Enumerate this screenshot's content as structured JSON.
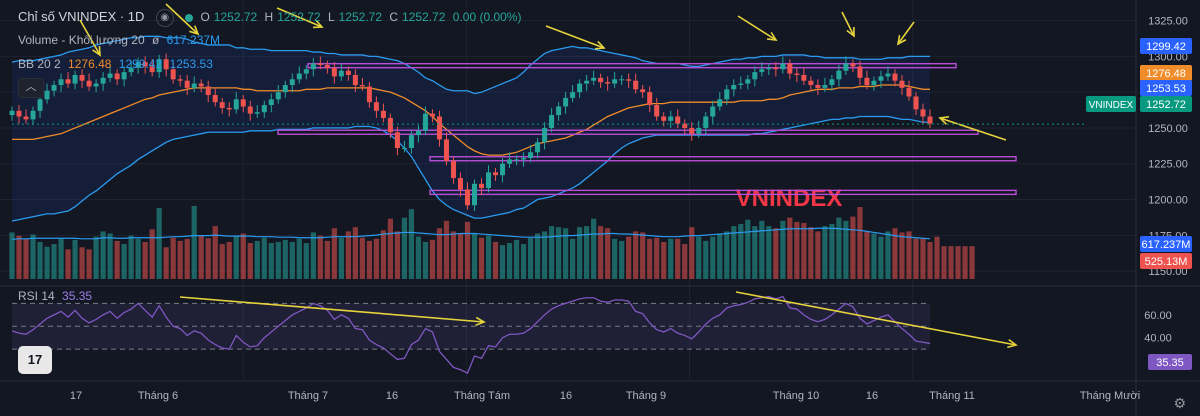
{
  "header": {
    "title": "Chỉ số VNINDEX · 1D",
    "ohlc": {
      "o_label": "O",
      "o": "1252.72",
      "h_label": "H",
      "h": "1252.72",
      "l_label": "L",
      "l": "1252.72",
      "c_label": "C",
      "c": "1252.72",
      "change": "0.00 (0.00%)"
    },
    "volume_label": "Volume - Khối lượng 20",
    "volume_value": "617.237M",
    "bb_label": "BB 20 2",
    "bb_values": [
      "1276.48",
      "1299.42",
      "1253.53"
    ],
    "rsi_label": "RSI 14",
    "rsi_value": "35.35"
  },
  "watermark": "VNINDEX",
  "logo_text": "17",
  "colors": {
    "up": "#26a69a",
    "down": "#ef5350",
    "bb_band": "#2a9bf0",
    "bb_basis": "#f08c2a",
    "rsi": "#7e57c2",
    "annot_line": "#b84dd6",
    "arrow": "#e6d33c",
    "bg": "#131722"
  },
  "chart_data": [
    {
      "type": "candlestick",
      "symbol": "VNINDEX",
      "timeframe": "1D",
      "x_tick_labels": [
        "17",
        "Tháng 6",
        "Tháng 7",
        "16",
        "Tháng Tám",
        "16",
        "Tháng 9",
        "Tháng 10",
        "16",
        "Tháng 11",
        "Tháng Mười"
      ],
      "y_tick_labels": [
        1325,
        1300,
        1275,
        1250,
        1225,
        1200,
        1175,
        1150
      ],
      "ylim": [
        1141,
        1331
      ],
      "price_tags": [
        {
          "label": "",
          "value": 1299.42,
          "color": "#2962ff"
        },
        {
          "label": "",
          "value": 1276.48,
          "color": "#f08c2a"
        },
        {
          "label": "",
          "value": 1253.53,
          "color": "#2962ff"
        },
        {
          "label": "VNINDEX",
          "value": 1252.72,
          "color": "#089981"
        }
      ],
      "close_series": [
        1262,
        1258,
        1256,
        1262,
        1270,
        1276,
        1280,
        1284,
        1281,
        1287,
        1283,
        1279,
        1281,
        1285,
        1288,
        1284,
        1289,
        1292,
        1296,
        1293,
        1289,
        1298,
        1291,
        1284,
        1283,
        1278,
        1281,
        1279,
        1273,
        1268,
        1264,
        1263,
        1270,
        1265,
        1260,
        1261,
        1266,
        1270,
        1275,
        1280,
        1284,
        1288,
        1291,
        1295,
        1294,
        1292,
        1286,
        1290,
        1287,
        1280,
        1279,
        1268,
        1262,
        1257,
        1247,
        1236,
        1236,
        1245,
        1248,
        1260,
        1258,
        1242,
        1227,
        1215,
        1207,
        1196,
        1211,
        1208,
        1219,
        1217,
        1225,
        1228,
        1228,
        1229,
        1233,
        1240,
        1250,
        1259,
        1265,
        1271,
        1275,
        1281,
        1283,
        1285,
        1282,
        1281,
        1284,
        1284,
        1283,
        1277,
        1275,
        1266,
        1258,
        1255,
        1258,
        1253,
        1250,
        1246,
        1250,
        1258,
        1265,
        1270,
        1277,
        1280,
        1281,
        1284,
        1289,
        1291,
        1292,
        1291,
        1295,
        1288,
        1287,
        1283,
        1280,
        1278,
        1280,
        1284,
        1290,
        1295,
        1293,
        1285,
        1280,
        1283,
        1286,
        1288,
        1283,
        1278,
        1272,
        1263,
        1258,
        1253
      ],
      "bb_upper": [
        1296,
        1297,
        1297,
        1297,
        1298,
        1299,
        1300,
        1301,
        1303,
        1304,
        1305,
        1306,
        1308,
        1309,
        1310,
        1311,
        1312,
        1313,
        1313,
        1314,
        1314,
        1314,
        1313,
        1313,
        1313,
        1312,
        1310,
        1309,
        1308,
        1308,
        1308,
        1308,
        1306,
        1306,
        1305,
        1305,
        1305,
        1304,
        1304,
        1304,
        1304,
        1304,
        1304,
        1303,
        1303,
        1302,
        1302,
        1301,
        1301,
        1301,
        1301,
        1300,
        1300,
        1299,
        1298,
        1297,
        1295,
        1292,
        1289,
        1285,
        1283,
        1280,
        1277,
        1276,
        1276,
        1276,
        1274,
        1275,
        1277,
        1279,
        1281,
        1283,
        1285,
        1289,
        1294,
        1298,
        1302,
        1304,
        1305,
        1306,
        1307,
        1306,
        1306,
        1305,
        1304,
        1303,
        1302,
        1301,
        1300,
        1299,
        1297,
        1296,
        1295,
        1295,
        1295,
        1295,
        1294,
        1293,
        1293,
        1294,
        1295,
        1296,
        1297,
        1298,
        1298,
        1299,
        1299,
        1300,
        1300,
        1300,
        1301,
        1301,
        1301,
        1301,
        1300,
        1300,
        1299,
        1299,
        1299,
        1299,
        1299,
        1298,
        1298,
        1298,
        1298,
        1299,
        1299,
        1299,
        1300,
        1300,
        1300,
        1300
      ],
      "bb_basis": [
        1242,
        1242,
        1242,
        1242,
        1243,
        1244,
        1245,
        1246,
        1248,
        1250,
        1252,
        1254,
        1256,
        1258,
        1260,
        1262,
        1264,
        1266,
        1268,
        1270,
        1271,
        1273,
        1274,
        1275,
        1276,
        1277,
        1278,
        1278,
        1278,
        1278,
        1278,
        1278,
        1278,
        1277,
        1277,
        1276,
        1276,
        1276,
        1276,
        1276,
        1276,
        1276,
        1277,
        1277,
        1277,
        1278,
        1278,
        1278,
        1278,
        1278,
        1278,
        1278,
        1277,
        1276,
        1275,
        1273,
        1271,
        1268,
        1265,
        1262,
        1258,
        1253,
        1249,
        1245,
        1241,
        1237,
        1234,
        1232,
        1231,
        1231,
        1231,
        1232,
        1233,
        1235,
        1237,
        1239,
        1240,
        1241,
        1242,
        1243,
        1245,
        1247,
        1249,
        1252,
        1255,
        1258,
        1260,
        1262,
        1264,
        1265,
        1266,
        1267,
        1267,
        1267,
        1268,
        1268,
        1268,
        1268,
        1268,
        1268,
        1268,
        1268,
        1268,
        1268,
        1269,
        1269,
        1269,
        1269,
        1270,
        1270,
        1271,
        1273,
        1274,
        1275,
        1276,
        1277,
        1277,
        1277,
        1278,
        1278,
        1278,
        1279,
        1279,
        1279,
        1280,
        1280,
        1280,
        1280,
        1279,
        1278,
        1277,
        1277
      ],
      "bb_lower": [
        1185,
        1186,
        1187,
        1188,
        1189,
        1190,
        1190,
        1191,
        1192,
        1195,
        1199,
        1203,
        1206,
        1210,
        1214,
        1218,
        1221,
        1224,
        1228,
        1231,
        1234,
        1237,
        1240,
        1242,
        1243,
        1244,
        1245,
        1246,
        1247,
        1247,
        1247,
        1247,
        1247,
        1247,
        1248,
        1248,
        1248,
        1248,
        1249,
        1249,
        1249,
        1249,
        1249,
        1250,
        1250,
        1250,
        1250,
        1250,
        1250,
        1251,
        1251,
        1251,
        1250,
        1248,
        1245,
        1241,
        1236,
        1230,
        1222,
        1214,
        1206,
        1200,
        1196,
        1193,
        1191,
        1189,
        1187,
        1187,
        1188,
        1189,
        1190,
        1191,
        1193,
        1194,
        1197,
        1200,
        1201,
        1202,
        1204,
        1206,
        1208,
        1211,
        1215,
        1219,
        1223,
        1227,
        1232,
        1236,
        1239,
        1241,
        1243,
        1244,
        1245,
        1245,
        1245,
        1245,
        1245,
        1245,
        1245,
        1245,
        1245,
        1245,
        1245,
        1245,
        1245,
        1245,
        1246,
        1246,
        1247,
        1248,
        1249,
        1250,
        1251,
        1252,
        1253,
        1254,
        1255,
        1256,
        1256,
        1257,
        1257,
        1258,
        1258,
        1258,
        1258,
        1258,
        1257,
        1256,
        1256,
        1255,
        1254,
        1254
      ],
      "horizontal_levels": [
        1293.5,
        1247,
        1228.5
      ],
      "support_level": 1205
    },
    {
      "type": "bar",
      "title": "Volume - Khối lượng 20",
      "unit": "M shares",
      "last_values": [
        617.237,
        525.13
      ],
      "volume": [
        880,
        820,
        760,
        840,
        700,
        610,
        660,
        760,
        560,
        740,
        600,
        560,
        800,
        900,
        860,
        720,
        660,
        820,
        760,
        700,
        940,
        1340,
        600,
        780,
        720,
        760,
        1380,
        830,
        770,
        1000,
        660,
        700,
        820,
        860,
        680,
        720,
        780,
        680,
        700,
        740,
        700,
        760,
        680,
        880,
        820,
        720,
        960,
        780,
        900,
        980,
        780,
        720,
        760,
        920,
        1140,
        900,
        1160,
        1320,
        800,
        700,
        740,
        960,
        1100,
        900,
        860,
        1080,
        860,
        780,
        820,
        700,
        640,
        680,
        740,
        660,
        780,
        860,
        900,
        1000,
        980,
        960,
        760,
        980,
        1000,
        1140,
        1000,
        960,
        760,
        720,
        800,
        900,
        880,
        760,
        780,
        700,
        760,
        760,
        660,
        980,
        800,
        720,
        800,
        860,
        900,
        1000,
        1040,
        1120,
        1000,
        1100,
        1000,
        960,
        1100,
        1160,
        1080,
        1060,
        980,
        900,
        1000,
        1040,
        1160,
        1100,
        1180,
        1360,
        900,
        860,
        800,
        900,
        960,
        880,
        900,
        760,
        760,
        700,
        800,
        620,
        620,
        620,
        620,
        620
      ],
      "volume_ma": [
        750,
        760,
        760,
        770,
        770,
        770,
        770,
        770,
        770,
        770,
        760,
        760,
        760,
        780,
        780,
        770,
        770,
        780,
        780,
        780,
        780,
        780,
        790,
        800,
        800,
        810,
        820,
        820,
        820,
        830,
        820,
        810,
        810,
        810,
        810,
        800,
        800,
        800,
        790,
        790,
        790,
        780,
        780,
        780,
        780,
        790,
        800,
        800,
        800,
        800,
        810,
        820,
        830,
        850,
        860,
        870,
        880,
        880,
        870,
        860,
        850,
        840,
        840,
        850,
        860,
        860,
        860,
        850,
        840,
        830,
        820,
        810,
        800,
        790,
        790,
        790,
        790,
        800,
        810,
        820,
        820,
        830,
        840,
        850,
        850,
        860,
        860,
        850,
        850,
        840,
        830,
        820,
        810,
        800,
        800,
        800,
        810,
        820,
        820,
        830,
        840,
        850,
        860,
        870,
        880,
        890,
        900,
        910,
        920,
        930,
        940,
        950,
        950,
        950,
        950,
        960,
        960,
        960,
        950,
        940,
        930,
        920,
        900,
        880,
        860,
        840,
        820,
        800,
        790,
        780,
        770,
        760
      ]
    },
    {
      "type": "line",
      "title": "RSI 14",
      "ylim": [
        10,
        80
      ],
      "y_tick_labels": [
        60,
        40
      ],
      "last_value": 35.35,
      "rsi": [
        46,
        44,
        43,
        47,
        52,
        57,
        60,
        63,
        58,
        64,
        57,
        53,
        56,
        60,
        63,
        57,
        62,
        65,
        70,
        64,
        58,
        68,
        58,
        50,
        48,
        42,
        46,
        44,
        38,
        34,
        31,
        30,
        42,
        36,
        32,
        33,
        40,
        45,
        50,
        55,
        60,
        63,
        66,
        70,
        68,
        64,
        56,
        60,
        57,
        48,
        47,
        38,
        34,
        31,
        26,
        21,
        22,
        34,
        38,
        48,
        45,
        28,
        21,
        14,
        12,
        9,
        24,
        22,
        33,
        32,
        40,
        43,
        43,
        44,
        48,
        54,
        60,
        65,
        68,
        70,
        72,
        74,
        75,
        75,
        72,
        71,
        73,
        73,
        72,
        63,
        61,
        53,
        47,
        45,
        48,
        44,
        42,
        39,
        45,
        52,
        57,
        60,
        66,
        68,
        69,
        71,
        74,
        75,
        76,
        74,
        76,
        66,
        65,
        60,
        56,
        54,
        56,
        60,
        65,
        70,
        67,
        57,
        52,
        55,
        58,
        60,
        54,
        48,
        43,
        37,
        36,
        35
      ]
    }
  ]
}
